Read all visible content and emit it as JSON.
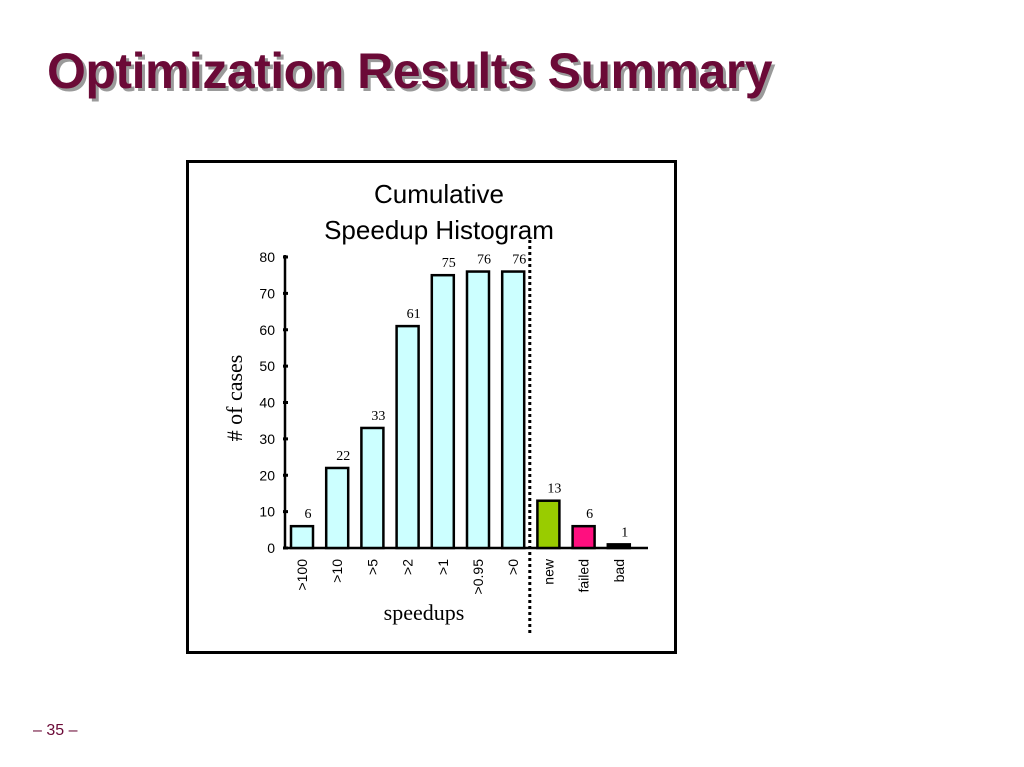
{
  "slide": {
    "title": "Optimization Results Summary",
    "page_number": "– 35 –",
    "title_color": "#6b0a37"
  },
  "chart_data": {
    "type": "bar",
    "title_line1": "Cumulative",
    "title_line2": "Speedup Histogram",
    "xlabel": "speedups",
    "ylabel": "# of cases",
    "ylim": [
      0,
      80
    ],
    "yticks": [
      0,
      10,
      20,
      30,
      40,
      50,
      60,
      70,
      80
    ],
    "grid": false,
    "categories": [
      ">100",
      ">10",
      ">5",
      ">2",
      ">1",
      ">0.95",
      ">0",
      "new",
      "failed",
      "bad"
    ],
    "values": [
      6,
      22,
      33,
      61,
      75,
      76,
      76,
      13,
      6,
      1
    ],
    "colors": [
      "#ccffff",
      "#ccffff",
      "#ccffff",
      "#ccffff",
      "#ccffff",
      "#ccffff",
      "#ccffff",
      "#99cc00",
      "#ff0f7f",
      "#000000"
    ],
    "separator_after_category": ">0"
  }
}
